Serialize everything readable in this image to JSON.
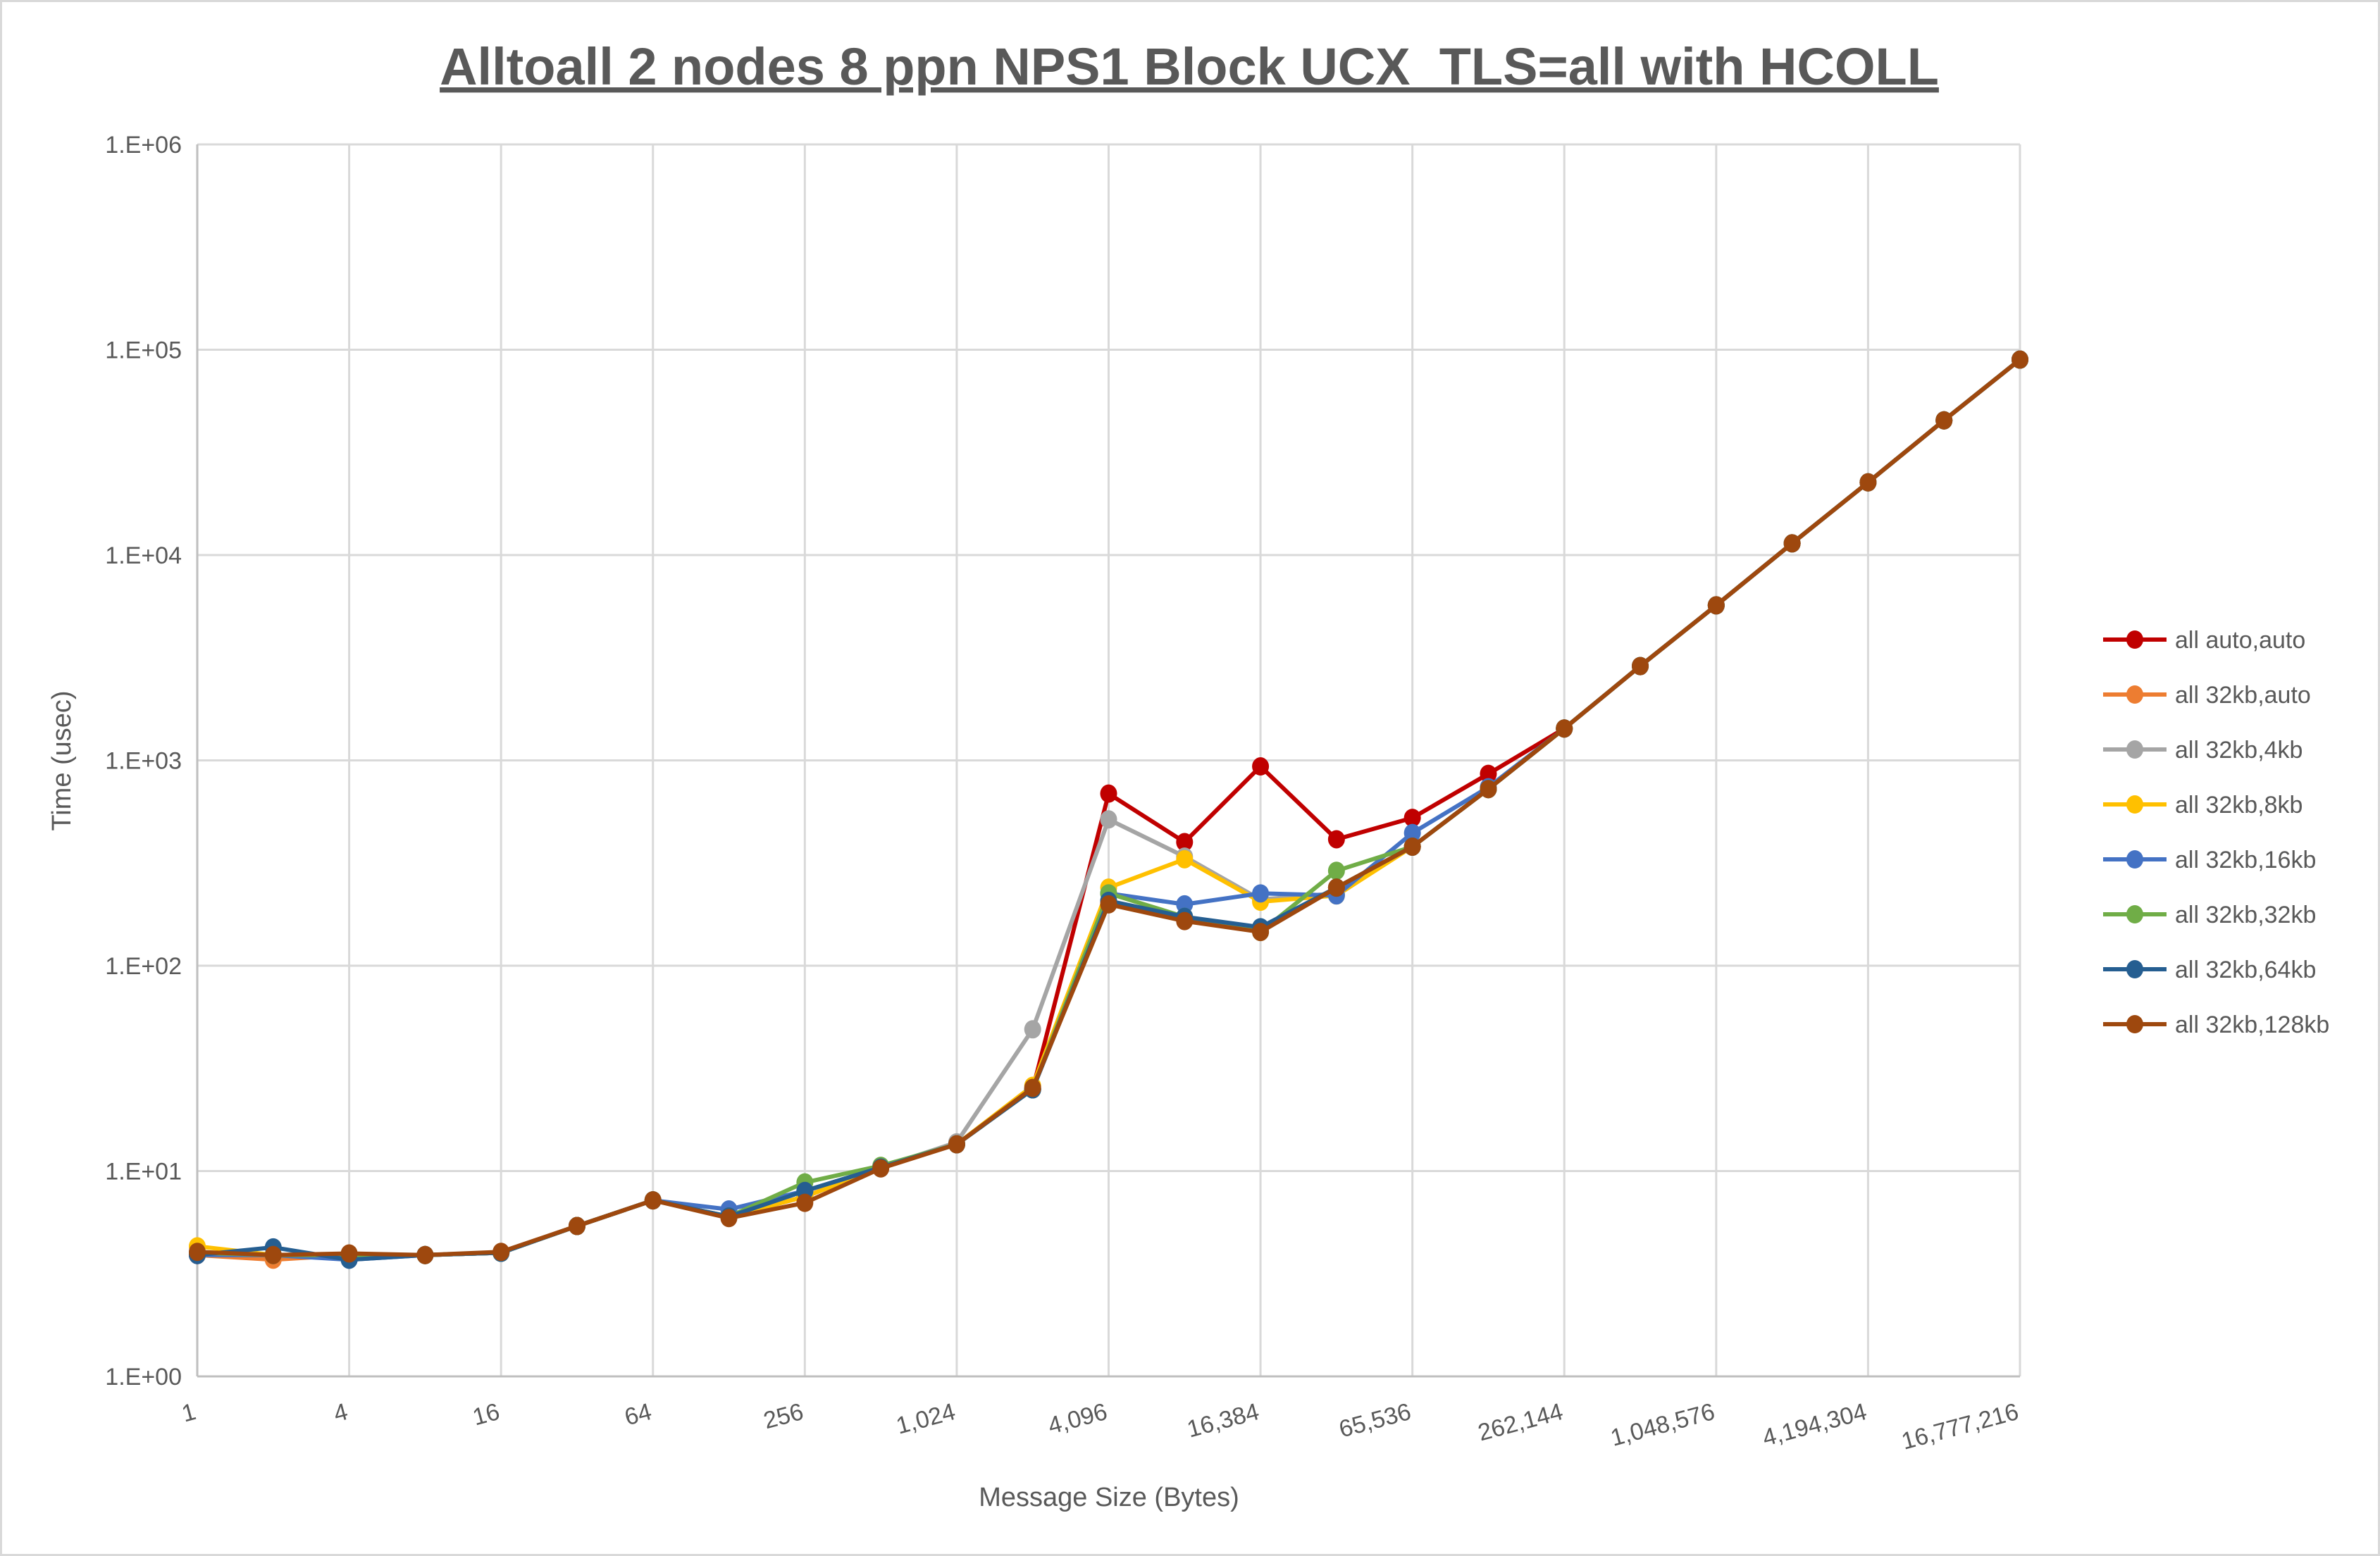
{
  "chart_data": {
    "type": "line",
    "title": "Alltoall 2 nodes 8 ppn NPS1 Block UCX_TLS=all with HCOLL",
    "xlabel": "Message Size (Bytes)",
    "ylabel": "Time (usec)",
    "x_scale": "log2",
    "y_scale": "log10",
    "ylim": [
      1,
      1000000
    ],
    "y_ticks": [
      "1.E+00",
      "1.E+01",
      "1.E+02",
      "1.E+03",
      "1.E+04",
      "1.E+05",
      "1.E+06"
    ],
    "x_tick_labels": [
      "1",
      "4",
      "16",
      "64",
      "256",
      "1,024",
      "4,096",
      "16,384",
      "65,536",
      "262,144",
      "1,048,576",
      "4,194,304",
      "16,777,216"
    ],
    "x": [
      1,
      2,
      4,
      8,
      16,
      32,
      64,
      128,
      256,
      512,
      1024,
      2048,
      4096,
      8192,
      16384,
      32768,
      65536,
      131072,
      262144,
      524288,
      1048576,
      2097152,
      4194304,
      8388608,
      16777216
    ],
    "grid": true,
    "legend_position": "right",
    "series": [
      {
        "name": "all auto,auto",
        "color": "#c00000",
        "values": [
          3.9,
          3.9,
          3.9,
          3.9,
          4.0,
          5.4,
          7.2,
          6.0,
          7.5,
          10.4,
          13.5,
          25,
          689,
          400,
          935,
          413,
          525,
          860,
          1430,
          2880,
          5690,
          11400,
          22600,
          45300,
          89500
        ]
      },
      {
        "name": "all 32kb,auto",
        "color": "#ed7d31",
        "values": [
          3.9,
          3.7,
          3.9,
          3.9,
          4.0,
          5.4,
          7.2,
          6.0,
          7.5,
          10.4,
          13.5,
          25,
          205,
          170,
          148,
          240,
          380,
          725,
          1430,
          2880,
          5690,
          11400,
          22600,
          45300,
          89500
        ]
      },
      {
        "name": "all 32kb,4kb",
        "color": "#a5a5a5",
        "values": [
          4.0,
          3.9,
          3.9,
          3.9,
          4.0,
          5.4,
          7.2,
          6.0,
          8.0,
          10.4,
          13.8,
          49,
          516,
          340,
          210,
          225,
          380,
          725,
          1430,
          2880,
          5690,
          11400,
          22600,
          45300,
          89500
        ]
      },
      {
        "name": "all 32kb,8kb",
        "color": "#ffc000",
        "values": [
          4.3,
          3.9,
          3.9,
          3.9,
          4.0,
          5.4,
          7.2,
          6.0,
          7.5,
          10.4,
          13.5,
          26,
          240,
          330,
          205,
          220,
          380,
          725,
          1430,
          2880,
          5690,
          11400,
          22600,
          45300,
          89500
        ]
      },
      {
        "name": "all 32kb,16kb",
        "color": "#4472c4",
        "values": [
          3.9,
          3.9,
          3.7,
          3.9,
          4.0,
          5.4,
          7.2,
          6.5,
          8.0,
          10.4,
          13.5,
          25,
          225,
          199,
          225,
          220,
          443,
          740,
          1430,
          2880,
          5690,
          11400,
          22600,
          45300,
          89500
        ]
      },
      {
        "name": "all 32kb,32kb",
        "color": "#70ad47",
        "values": [
          4.0,
          3.9,
          3.9,
          3.9,
          4.0,
          5.4,
          7.2,
          6.0,
          8.8,
          10.6,
          13.5,
          25,
          225,
          173,
          146,
          290,
          380,
          725,
          1430,
          2880,
          5690,
          11400,
          22600,
          45300,
          89500
        ]
      },
      {
        "name": "all 32kb,64kb",
        "color": "#255e91",
        "values": [
          3.9,
          4.25,
          3.7,
          3.9,
          4.0,
          5.4,
          7.2,
          6.0,
          8.0,
          10.4,
          13.5,
          25,
          207,
          173,
          154,
          240,
          380,
          725,
          1430,
          2880,
          5690,
          11400,
          22600,
          45300,
          89500
        ]
      },
      {
        "name": "all 32kb,128kb",
        "color": "#9e480e",
        "values": [
          4.04,
          3.9,
          3.97,
          3.9,
          4.04,
          5.4,
          7.2,
          5.9,
          7.0,
          10.3,
          13.5,
          25.4,
          199,
          165,
          146,
          240,
          380,
          725,
          1430,
          2880,
          5690,
          11400,
          22600,
          45300,
          89500
        ]
      }
    ]
  }
}
